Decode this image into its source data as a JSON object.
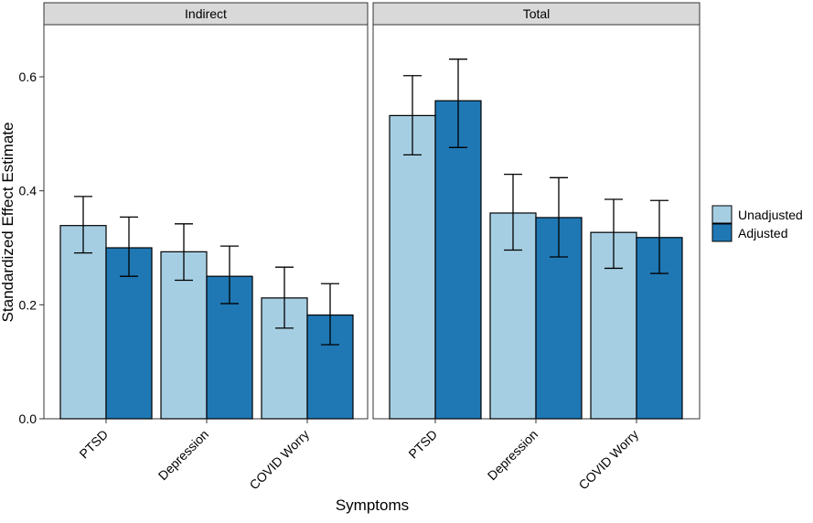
{
  "chart_data": {
    "type": "bar",
    "xlabel": "Symptoms",
    "ylabel": "Standardized Effect Estimate",
    "ylim": [
      0,
      0.69
    ],
    "yticks": [
      0.0,
      0.2,
      0.4,
      0.6
    ],
    "ytick_labels": [
      "0.0",
      "0.2",
      "0.4",
      "0.6"
    ],
    "categories": [
      "PTSD",
      "Depression",
      "COVID Worry"
    ],
    "legend": {
      "position": "right",
      "entries": [
        "Unadjusted",
        "Adjusted"
      ]
    },
    "colors": {
      "Unadjusted": "#a6cee3",
      "Adjusted": "#1f78b4",
      "strip": "#d9d9d9"
    },
    "panels": [
      {
        "title": "Indirect",
        "series": [
          {
            "name": "Unadjusted",
            "values": [
              0.339,
              0.293,
              0.212
            ],
            "lower": [
              0.291,
              0.243,
              0.159
            ],
            "upper": [
              0.39,
              0.342,
              0.266
            ]
          },
          {
            "name": "Adjusted",
            "values": [
              0.3,
              0.25,
              0.182
            ],
            "lower": [
              0.25,
              0.202,
              0.13
            ],
            "upper": [
              0.354,
              0.303,
              0.237
            ]
          }
        ]
      },
      {
        "title": "Total",
        "series": [
          {
            "name": "Unadjusted",
            "values": [
              0.532,
              0.361,
              0.327
            ],
            "lower": [
              0.463,
              0.296,
              0.264
            ],
            "upper": [
              0.602,
              0.429,
              0.385
            ]
          },
          {
            "name": "Adjusted",
            "values": [
              0.558,
              0.353,
              0.318
            ],
            "lower": [
              0.476,
              0.284,
              0.255
            ],
            "upper": [
              0.631,
              0.423,
              0.383
            ]
          }
        ]
      }
    ]
  }
}
